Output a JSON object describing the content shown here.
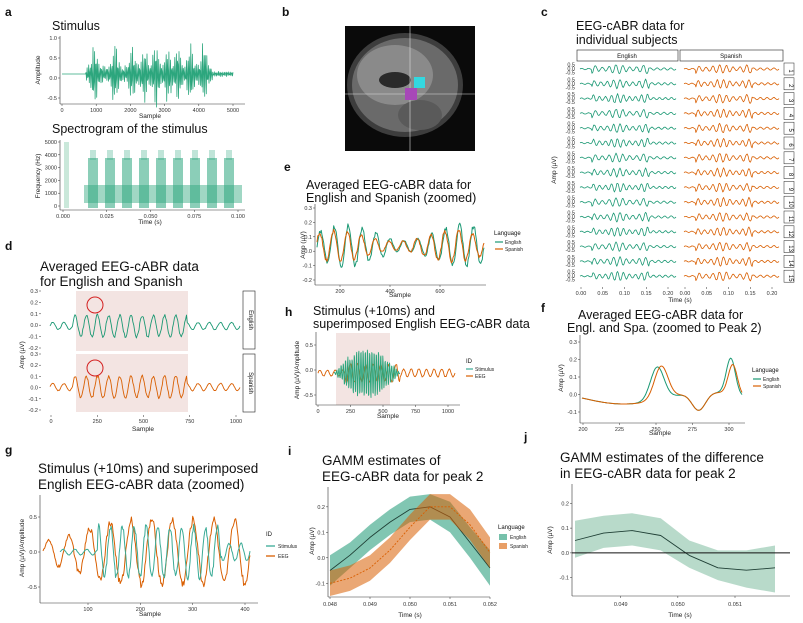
{
  "colors": {
    "english": "#1a9873",
    "spanish": "#d95f02",
    "stim": "#2ca67d",
    "stimulus": "#3aab96",
    "band": "#eed8d6",
    "red_circle": "#d42020"
  },
  "panels": {
    "a": {
      "label": "a",
      "title": "Stimulus",
      "xlabel": "Sample",
      "ylabel": "Amplitude",
      "xticks": [
        "0",
        "1000",
        "2000",
        "3000",
        "4000",
        "5000"
      ],
      "yticks": [
        "1.0",
        "0.5",
        "0.0",
        "-0.5"
      ]
    },
    "a2": {
      "title": "Spectrogram of the stimulus",
      "xlabel": "Time (s)",
      "ylabel": "Frequency (Hz)",
      "xticks": [
        "0.000",
        "0.025",
        "0.050",
        "0.075",
        "0.100"
      ],
      "yticks": [
        "5000",
        "4000",
        "3000",
        "2000",
        "1000",
        "0"
      ]
    },
    "b": {
      "label": "b"
    },
    "c": {
      "label": "c",
      "title": [
        "EEG-cABR data for",
        "individual subjects"
      ],
      "strips": [
        "English",
        "Spanish"
      ],
      "ylabel": "Amp (µV)",
      "xlabel": "Time (s)",
      "row_ticks": [
        "0.5",
        "0.0",
        "-0.5"
      ],
      "subjects": [
        "1",
        "2",
        "3",
        "4",
        "5",
        "6",
        "7",
        "8",
        "9",
        "10",
        "11",
        "12",
        "13",
        "14",
        "15"
      ],
      "xticks": [
        "0.00",
        "0.05",
        "0.10",
        "0.15",
        "0.20"
      ]
    },
    "d": {
      "label": "d",
      "title": [
        "Averaged EEG-cABR data",
        "for English and Spanish"
      ],
      "strips": [
        "English",
        "Spanish"
      ],
      "ylabel": "Amp (µV)",
      "xlabel": "Sample",
      "xticks": [
        "0",
        "250",
        "500",
        "750",
        "1000"
      ],
      "yticks": [
        "0.3",
        "0.2",
        "0.1",
        "0.0",
        "-0.1",
        "-0.2"
      ]
    },
    "e": {
      "label": "e",
      "title": [
        "Averaged EEG-cABR data for",
        "English and Spanish (zoomed)"
      ],
      "xlabel": "Sample",
      "ylabel": "Amp (µV)",
      "xticks": [
        "200",
        "400",
        "600"
      ],
      "yticks": [
        "0.3",
        "0.2",
        "0.1",
        "0.0",
        "-0.1",
        "-0.2"
      ],
      "legend_title": "Language",
      "legend": [
        "English",
        "Spanish"
      ]
    },
    "f": {
      "label": "f",
      "title": [
        "Averaged  EEG-cABR data for",
        "Engl. and Spa. (zoomed to Peak 2)"
      ],
      "xlabel": "Sample",
      "ylabel": "Amp (µV)",
      "xticks": [
        "200",
        "225",
        "250",
        "275",
        "300"
      ],
      "yticks": [
        "0.3",
        "0.2",
        "0.1",
        "0.0",
        "-0.1"
      ],
      "legend_title": "Language",
      "legend": [
        "English",
        "Spanish"
      ]
    },
    "g": {
      "label": "g",
      "title": [
        "Stimulus (+10ms) and superimposed",
        "English EEG-cABR data (zoomed)"
      ],
      "xlabel": "Sample",
      "ylabel": "Amp (µV)/Amplitude",
      "xticks": [
        "100",
        "200",
        "300",
        "400"
      ],
      "yticks": [
        "0.5",
        "0.0",
        "-0.5"
      ],
      "legend_title": "ID",
      "legend": [
        "Stimulus",
        "EEG"
      ]
    },
    "h": {
      "label": "h",
      "title": [
        "Stimulus (+10ms) and",
        "superimposed English EEG-cABR data"
      ],
      "xlabel": "Sample",
      "ylabel": "Amp (µV)/Amplitude",
      "xticks": [
        "0",
        "250",
        "500",
        "750",
        "1000"
      ],
      "yticks": [
        "0.5",
        "0.0",
        "-0.5"
      ],
      "legend_title": "ID",
      "legend": [
        "Stimulus",
        "EEG"
      ]
    },
    "i": {
      "label": "i",
      "title": [
        "GAMM estimates of",
        "EEG-cABR data for peak 2"
      ],
      "xlabel": "Time (s)",
      "ylabel": "Amp (µV)",
      "xticks": [
        "0.048",
        "0.049",
        "0.050",
        "0.051",
        "0.052"
      ],
      "yticks": [
        "0.2",
        "0.1",
        "0.0",
        "-0.1"
      ],
      "legend_title": "Language",
      "legend": [
        "English",
        "Spanish"
      ]
    },
    "j": {
      "label": "j",
      "title": [
        "GAMM estimates of the difference",
        "in EEG-cABR data for peak 2"
      ],
      "xlabel": "Time (s)",
      "ylabel": "Amp (µV)",
      "xticks": [
        "0.049",
        "0.050",
        "0.051"
      ],
      "yticks": [
        "0.2",
        "0.1",
        "0.0",
        "-0.1"
      ]
    }
  },
  "chart_data": [
    {
      "panel": "i",
      "type": "line",
      "x": [
        0.048,
        0.0485,
        0.049,
        0.0495,
        0.05,
        0.0505,
        0.051,
        0.0515,
        0.052
      ],
      "series": [
        {
          "name": "English",
          "values": [
            -0.05,
            0.01,
            0.08,
            0.14,
            0.19,
            0.2,
            0.16,
            0.06,
            -0.04
          ],
          "lower": [
            -0.11,
            -0.04,
            0.03,
            0.09,
            0.14,
            0.15,
            0.1,
            0.0,
            -0.11
          ],
          "upper": [
            0.01,
            0.06,
            0.13,
            0.19,
            0.24,
            0.25,
            0.22,
            0.12,
            0.03
          ]
        },
        {
          "name": "Spanish",
          "values": [
            -0.1,
            -0.08,
            -0.04,
            0.03,
            0.12,
            0.2,
            0.2,
            0.13,
            0.02
          ],
          "lower": [
            -0.15,
            -0.13,
            -0.09,
            -0.02,
            0.07,
            0.15,
            0.15,
            0.07,
            -0.04
          ],
          "upper": [
            -0.05,
            -0.03,
            0.01,
            0.08,
            0.17,
            0.25,
            0.25,
            0.19,
            0.08
          ]
        }
      ],
      "ylim": [
        -0.15,
        0.27
      ]
    },
    {
      "panel": "j",
      "type": "line",
      "x": [
        0.0482,
        0.0487,
        0.0492,
        0.0497,
        0.0502,
        0.0507,
        0.0512,
        0.0517
      ],
      "series": [
        {
          "values": [
            0.05,
            0.08,
            0.09,
            0.07,
            -0.01,
            -0.06,
            -0.07,
            -0.06
          ],
          "lower": [
            -0.02,
            0.02,
            0.03,
            0.01,
            -0.06,
            -0.11,
            -0.14,
            -0.16
          ],
          "upper": [
            0.13,
            0.15,
            0.16,
            0.14,
            0.05,
            0.01,
            0.01,
            0.03
          ]
        }
      ],
      "ylim": [
        -0.17,
        0.27
      ]
    }
  ]
}
